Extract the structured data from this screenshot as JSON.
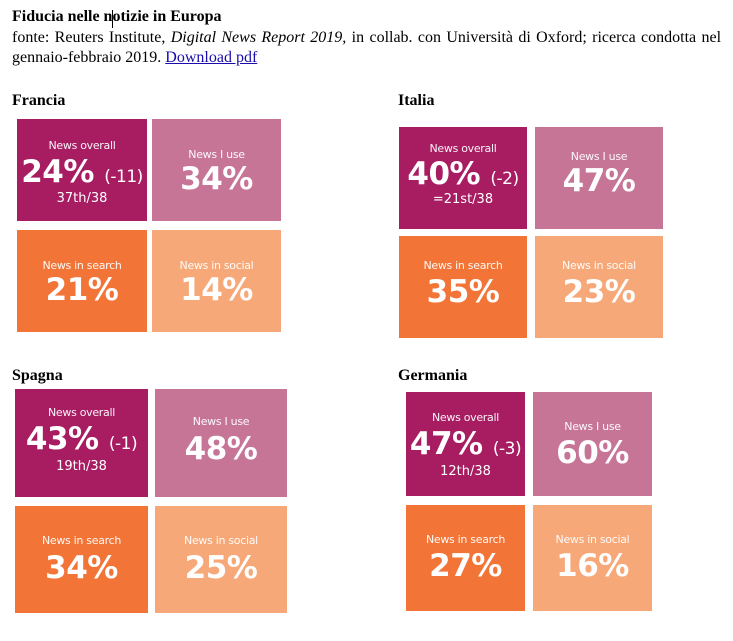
{
  "title": "Fiducia nelle notizie in Europa",
  "source": {
    "prefix": "fonte: Reuters Institute,",
    "report": "Digital News Report 2019,",
    "suffix": "in collab. con Università di Oxford; ricerca condotta nel gennaio-febbraio 2019.",
    "link": "Download pdf"
  },
  "labels": {
    "overall": "News overall",
    "use": "News I use",
    "search": "News in search",
    "social": "News in social"
  },
  "countries": [
    {
      "name": "Francia",
      "overall": "24%",
      "change": "(-11)",
      "rank": "37th/38",
      "use": "34%",
      "search": "21%",
      "social": "14%"
    },
    {
      "name": "Italia",
      "overall": "40%",
      "change": "(-2)",
      "rank": "=21st/38",
      "use": "47%",
      "search": "35%",
      "social": "23%"
    },
    {
      "name": "Spagna",
      "overall": "43%",
      "change": "(-1)",
      "rank": "19th/38",
      "use": "48%",
      "search": "34%",
      "social": "25%"
    },
    {
      "name": "Germania",
      "overall": "47%",
      "change": "(-3)",
      "rank": "12th/38",
      "use": "60%",
      "search": "27%",
      "social": "16%"
    }
  ],
  "colors": {
    "overall": "#a81c62",
    "use": "#c77597",
    "search": "#f27436",
    "social": "#f6a878"
  }
}
